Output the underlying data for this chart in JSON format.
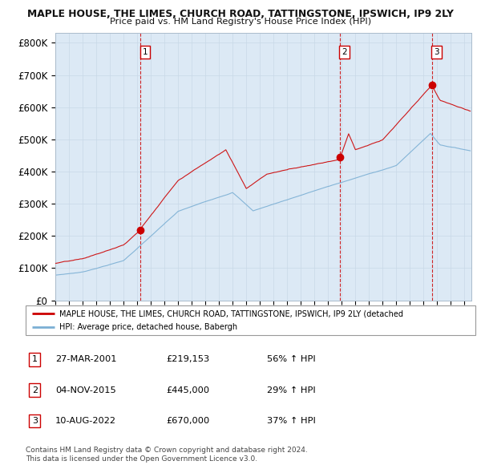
{
  "title1": "MAPLE HOUSE, THE LIMES, CHURCH ROAD, TATTINGSTONE, IPSWICH, IP9 2LY",
  "title2": "Price paid vs. HM Land Registry's House Price Index (HPI)",
  "legend_property": "MAPLE HOUSE, THE LIMES, CHURCH ROAD, TATTINGSTONE, IPSWICH, IP9 2LY (detached",
  "legend_hpi": "HPI: Average price, detached house, Babergh",
  "property_color": "#cc0000",
  "hpi_color": "#7bafd4",
  "background_color": "#dce9f5",
  "purchases": [
    {
      "date_num": 2001.23,
      "price": 219153,
      "label": "1",
      "date_str": "27-MAR-2001",
      "pct": "56%"
    },
    {
      "date_num": 2015.84,
      "price": 445000,
      "label": "2",
      "date_str": "04-NOV-2015",
      "pct": "29%"
    },
    {
      "date_num": 2022.61,
      "price": 670000,
      "label": "3",
      "date_str": "10-AUG-2022",
      "pct": "37%"
    }
  ],
  "vline_color": "#cc0000",
  "ylim": [
    0,
    830000
  ],
  "xlim_start": 1995.0,
  "xlim_end": 2025.5,
  "yticks": [
    0,
    100000,
    200000,
    300000,
    400000,
    500000,
    600000,
    700000,
    800000
  ],
  "ytick_labels": [
    "£0",
    "£100K",
    "£200K",
    "£300K",
    "£400K",
    "£500K",
    "£600K",
    "£700K",
    "£800K"
  ],
  "footer1": "Contains HM Land Registry data © Crown copyright and database right 2024.",
  "footer2": "This data is licensed under the Open Government Licence v3.0."
}
